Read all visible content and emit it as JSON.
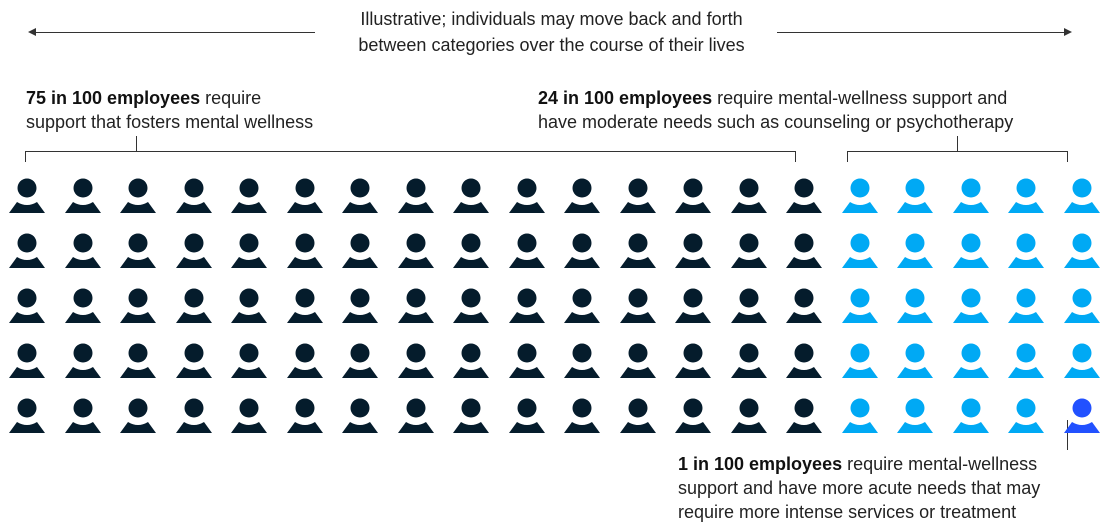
{
  "scope_note": {
    "line1": "Illustrative; individuals may move back and forth",
    "line2": "between categories over the course of their lives"
  },
  "groups": [
    {
      "id": "foster",
      "bold": "75 in 100 employees",
      "line1_rest": " require",
      "line2": "support that fosters mental wellness",
      "count": 75,
      "color": "#051c2c"
    },
    {
      "id": "moderate",
      "bold": "24 in 100 employees",
      "line1_rest": " require mental-wellness support and",
      "line2": "have moderate needs such as counseling or psychotherapy",
      "count": 24,
      "color": "#00a9f4"
    },
    {
      "id": "acute",
      "bold": "1 in 100 employees",
      "line1_rest": " require mental-wellness",
      "line2": "support and have more acute needs that may",
      "line3": "require more intense services or treatment",
      "count": 1,
      "color": "#2251ff"
    }
  ],
  "grid": {
    "columns": 20,
    "rows": 5,
    "icon": "person-icon"
  }
}
